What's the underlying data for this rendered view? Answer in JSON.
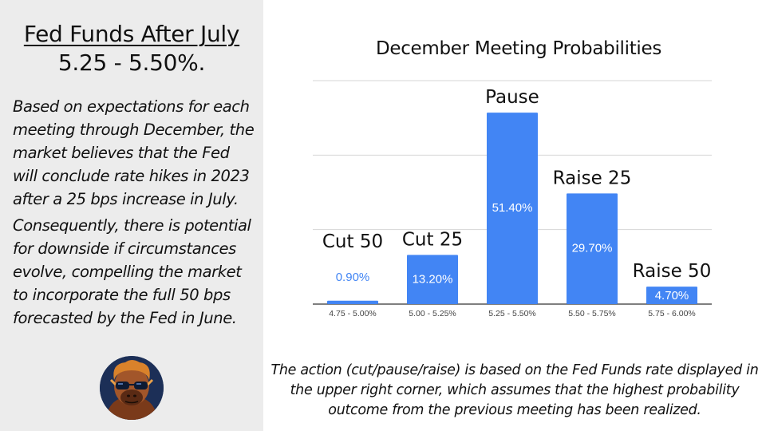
{
  "left": {
    "title": "Fed Funds After July",
    "rate": "5.25 - 5.50%.",
    "paragraph_1": "Based on expectations for each meeting through December, the market believes that the Fed will conclude rate hikes in 2023 after a 25 bps increase in July.",
    "paragraph_2": "Consequently, there is potential for downside if circumstances evolve, compelling the market to incorporate the full 50 bps forecasted by the Fed in June.",
    "avatar_icon": "gorilla-with-sunglasses-avatar-icon"
  },
  "chart_data": {
    "type": "bar",
    "title": "December Meeting Probabilities",
    "categories": [
      "4.75 - 5.00%",
      "5.00 - 5.25%",
      "5.25 - 5.50%",
      "5.50 - 5.75%",
      "5.75 - 6.00%"
    ],
    "values": [
      0.9,
      13.2,
      51.4,
      29.7,
      4.7
    ],
    "data_labels": [
      "0.90%",
      "13.20%",
      "51.40%",
      "29.70%",
      "4.70%"
    ],
    "annotations": [
      "Cut 50",
      "Cut 25",
      "Pause",
      "Raise 25",
      "Raise 50"
    ],
    "xlabel": "",
    "ylabel": "",
    "ylim": [
      0,
      60
    ],
    "grid": true,
    "bar_color": "#4285f4"
  },
  "footnote": "The action (cut/pause/raise) is based on the Fed Funds rate displayed in the upper right corner, which assumes that the highest probability outcome from the previous meeting has been realized."
}
